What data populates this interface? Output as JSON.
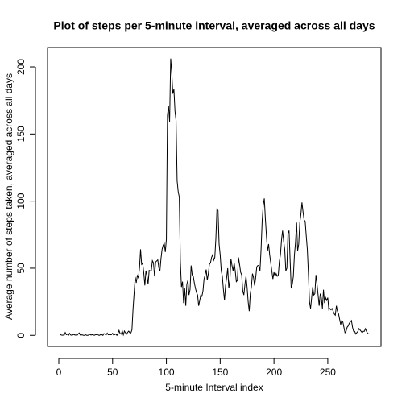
{
  "chart_data": {
    "type": "line",
    "title": "Plot of steps per 5-minute interval, averaged across all days",
    "x_label": "5-minute Interval index",
    "y_label": "Average number of steps taken, averaged across all days",
    "color": "#000000",
    "x": [
      1,
      2,
      3,
      4,
      5,
      6,
      7,
      8,
      9,
      10,
      11,
      12,
      13,
      14,
      15,
      16,
      17,
      18,
      19,
      20,
      21,
      22,
      23,
      24,
      25,
      26,
      27,
      28,
      29,
      30,
      31,
      32,
      33,
      34,
      35,
      36,
      37,
      38,
      39,
      40,
      41,
      42,
      43,
      44,
      45,
      46,
      47,
      48,
      49,
      50,
      51,
      52,
      53,
      54,
      55,
      56,
      57,
      58,
      59,
      60,
      61,
      62,
      63,
      64,
      65,
      66,
      67,
      68,
      69,
      70,
      71,
      72,
      73,
      74,
      75,
      76,
      77,
      78,
      79,
      80,
      81,
      82,
      83,
      84,
      85,
      86,
      87,
      88,
      89,
      90,
      91,
      92,
      93,
      94,
      95,
      96,
      97,
      98,
      99,
      100,
      101,
      102,
      103,
      104,
      105,
      106,
      107,
      108,
      109,
      110,
      111,
      112,
      113,
      114,
      115,
      116,
      117,
      118,
      119,
      120,
      121,
      122,
      123,
      124,
      125,
      126,
      127,
      128,
      129,
      130,
      131,
      132,
      133,
      134,
      135,
      136,
      137,
      138,
      139,
      140,
      141,
      142,
      143,
      144,
      145,
      146,
      147,
      148,
      149,
      150,
      151,
      152,
      153,
      154,
      155,
      156,
      157,
      158,
      159,
      160,
      161,
      162,
      163,
      164,
      165,
      166,
      167,
      168,
      169,
      170,
      171,
      172,
      173,
      174,
      175,
      176,
      177,
      178,
      179,
      180,
      181,
      182,
      183,
      184,
      185,
      186,
      187,
      188,
      189,
      190,
      191,
      192,
      193,
      194,
      195,
      196,
      197,
      198,
      199,
      200,
      201,
      202,
      203,
      204,
      205,
      206,
      207,
      208,
      209,
      210,
      211,
      212,
      213,
      214,
      215,
      216,
      217,
      218,
      219,
      220,
      221,
      222,
      223,
      224,
      225,
      226,
      227,
      228,
      229,
      230,
      231,
      232,
      233,
      234,
      235,
      236,
      237,
      238,
      239,
      240,
      241,
      242,
      243,
      244,
      245,
      246,
      247,
      248,
      249,
      250,
      251,
      252,
      253,
      254,
      255,
      256,
      257,
      258,
      259,
      260,
      261,
      262,
      263,
      264,
      265,
      266,
      267,
      268,
      269,
      270,
      271,
      272,
      273,
      274,
      275,
      276,
      277,
      278,
      279,
      280,
      281,
      282,
      283,
      284,
      285,
      286,
      287,
      288
    ],
    "values": [
      1.7,
      0.3,
      0.1,
      0.2,
      0.1,
      2.1,
      0.5,
      0.9,
      0,
      1.5,
      0.3,
      0.1,
      0.3,
      0.7,
      0.2,
      0.3,
      0,
      1.1,
      1.8,
      0.2,
      0.4,
      0.3,
      0,
      0,
      0.4,
      0,
      0,
      0.3,
      0.8,
      0.2,
      0.5,
      0.3,
      0,
      0.4,
      0.5,
      0.9,
      0.1,
      0,
      0.9,
      0.5,
      0,
      1.3,
      0.8,
      0.3,
      1.7,
      0.4,
      0.6,
      0.4,
      0.5,
      1.5,
      0.2,
      0.5,
      1.1,
      0,
      1.5,
      3.6,
      1.3,
      0.9,
      3.3,
      0.4,
      3.2,
      1.9,
      0.9,
      2.2,
      3.1,
      2.0,
      1.8,
      4.1,
      19.6,
      31.2,
      43.4,
      39.1,
      44.5,
      42.9,
      50.1,
      64.1,
      52.8,
      53.6,
      46.5,
      37.2,
      48.2,
      44.5,
      38.0,
      48.4,
      48.0,
      48.3,
      55.6,
      54.0,
      43.9,
      54.6,
      55.4,
      56.2,
      50.2,
      47.9,
      57.3,
      64.1,
      67.1,
      68.6,
      62.1,
      71.6,
      164.0,
      170.7,
      159.0,
      206.2,
      195.9,
      180.0,
      183.4,
      167.0,
      160.0,
      115.0,
      107.0,
      103.0,
      55.0,
      36.0,
      40.0,
      24.0,
      35.0,
      22.0,
      38.0,
      41.0,
      30.0,
      34.0,
      52.0,
      45.0,
      44.0,
      39.0,
      35.0,
      32.0,
      30.0,
      22.0,
      26.0,
      30.0,
      29.0,
      33.0,
      42.0,
      45.0,
      49.0,
      41.0,
      46.0,
      53.0,
      54.0,
      58.0,
      60.0,
      56.0,
      58.0,
      72.0,
      94.0,
      93.0,
      68.0,
      60.0,
      48.0,
      44.0,
      34.0,
      26.0,
      37.0,
      43.0,
      50.0,
      35.0,
      41.0,
      57.0,
      52.0,
      48.0,
      54.0,
      48.0,
      40.0,
      41.0,
      58.0,
      53.0,
      47.0,
      45.0,
      33.0,
      30.0,
      38.0,
      44.0,
      36.0,
      25.0,
      18.0,
      31.0,
      36.0,
      46.0,
      43.0,
      37.0,
      43.0,
      51.0,
      52.0,
      52.0,
      48.0,
      64.0,
      85.0,
      97.0,
      102.0,
      87.0,
      74.0,
      63.0,
      68.0,
      60.0,
      54.0,
      48.0,
      42.0,
      47.0,
      44.0,
      46.0,
      44.0,
      45.0,
      55.0,
      60.0,
      71.0,
      78.0,
      70.0,
      64.0,
      48.0,
      50.0,
      76.0,
      78.0,
      56.0,
      35.0,
      38.0,
      44.0,
      60.0,
      69.0,
      84.0,
      63.0,
      68.0,
      84.0,
      90.0,
      99.0,
      92.0,
      86.0,
      85.0,
      74.0,
      64.0,
      46.0,
      25.0,
      20.0,
      28.0,
      36.0,
      30.0,
      31.0,
      45.0,
      38.0,
      30.0,
      22.0,
      31.0,
      28.0,
      20.0,
      34.0,
      24.0,
      28.0,
      26.0,
      28.0,
      19.0,
      20.0,
      19.0,
      20.0,
      18.0,
      16.0,
      15.0,
      22.0,
      18.0,
      16.0,
      12.0,
      8.0,
      11.0,
      10.0,
      6.0,
      2.0,
      3.0,
      6.0,
      7.0,
      9.0,
      10.0,
      11.0,
      6.0,
      3.0,
      3.0,
      1.0,
      2.0,
      3.0,
      5.0,
      4.0,
      3.0,
      2.0,
      3.0,
      3.0,
      5.0,
      3.0,
      1.5,
      1.1
    ],
    "xlim": [
      -10.48,
      299.48
    ],
    "ylim": [
      -8.25,
      214.42
    ],
    "xticks": [
      0,
      50,
      100,
      150,
      200,
      250
    ],
    "yticks": [
      0,
      50,
      100,
      150,
      200
    ],
    "grid": false
  }
}
